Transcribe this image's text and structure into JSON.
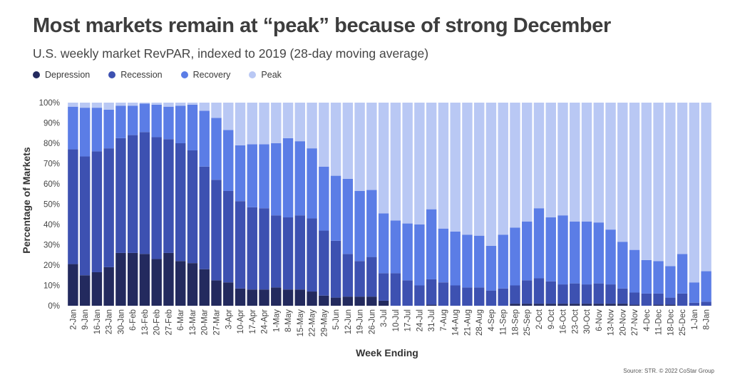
{
  "header": {
    "title": "Most markets remain at “peak” because of strong December",
    "subtitle": "U.S. weekly market RevPAR, indexed to 2019 (28-day moving average)"
  },
  "source": "Source: STR. © 2022 CoStar Group",
  "colors": {
    "Depression": "#232a5e",
    "Recession": "#3d51b1",
    "Recovery": "#5b7de6",
    "Peak": "#b9c8f4"
  },
  "chart_data": {
    "type": "bar",
    "stacked": true,
    "xlabel": "Week Ending",
    "ylabel": "Percentage of Markets",
    "ylim": [
      0,
      100
    ],
    "yticks": [
      "0%",
      "10%",
      "20%",
      "30%",
      "40%",
      "50%",
      "60%",
      "70%",
      "80%",
      "90%",
      "100%"
    ],
    "legend_position": "top-left",
    "grid": false,
    "x_tick_labels": [
      "2-Jan",
      "9-Jan",
      "16-Jan",
      "23-Jan",
      "30-Jan",
      "6-Feb",
      "13-Feb",
      "20-Feb",
      "27-Feb",
      "6-Mar",
      "13-Mar",
      "20-Mar",
      "27-Mar",
      "3-Apr",
      "10-Apr",
      "17-Apr",
      "24-Apr",
      "1-May",
      "8-May",
      "15-May",
      "22-May",
      "29-May",
      "5-Jun",
      "12-Jun",
      "19-Jun",
      "26-Jun",
      "3-Jul",
      "10-Jul",
      "17-Jul",
      "24-Jul",
      "31-Jul",
      "7-Aug",
      "14-Aug",
      "21-Aug",
      "28-Aug",
      "4-Sep",
      "11-Sep",
      "18-Sep",
      "25-Sep",
      "2-Oct",
      "9-Oct",
      "16-Oct",
      "23-Oct",
      "30-Oct",
      "6-Nov",
      "13-Nov",
      "20-Nov",
      "27-Nov",
      "4-Dec",
      "11-Dec",
      "18-Dec",
      "25-Dec",
      "1-Jan",
      "8-Jan"
    ],
    "tick_every": 1,
    "series": [
      {
        "name": "Depression",
        "values": [
          20.5,
          15,
          16.5,
          19,
          26,
          26,
          25.5,
          23,
          26,
          22,
          21,
          18,
          12.5,
          11.5,
          8.5,
          8,
          8,
          9,
          8,
          8,
          7,
          5,
          4,
          4.5,
          4.5,
          4.5,
          2.5,
          0,
          0,
          0,
          0.5,
          0,
          0,
          0,
          0,
          0,
          0,
          1,
          1,
          1,
          1,
          1,
          1,
          1,
          1,
          1,
          1,
          0.5,
          0,
          0.5,
          0.5,
          0,
          0,
          0
        ]
      },
      {
        "name": "Recession",
        "values": [
          56.5,
          58.5,
          59.5,
          58.5,
          56.5,
          58,
          60,
          60,
          56,
          58,
          55.5,
          50.5,
          49.5,
          45,
          43,
          40.5,
          40,
          35.5,
          35.5,
          36.5,
          36,
          32,
          28,
          21,
          17.5,
          19.5,
          13.5,
          16,
          12.5,
          10,
          12.5,
          11.5,
          10,
          9,
          9,
          7.5,
          8.5,
          9,
          11.5,
          12.5,
          11,
          9.5,
          10,
          9.5,
          10,
          9.5,
          7.5,
          6,
          6,
          5.5,
          3.5,
          6,
          1.5,
          2
        ]
      },
      {
        "name": "Recovery",
        "values": [
          21,
          24,
          21.5,
          19,
          16,
          14.5,
          14,
          16,
          16,
          18.5,
          22.5,
          27.5,
          30.5,
          30,
          27.5,
          31,
          31.5,
          35.5,
          39,
          36.5,
          34.5,
          31.5,
          32,
          37,
          34.5,
          33,
          29.5,
          26,
          28,
          30,
          34.5,
          26.5,
          26.5,
          26,
          25.5,
          22,
          26.5,
          28.5,
          29,
          34.5,
          31.5,
          34,
          30.5,
          31,
          30,
          27,
          23,
          21,
          16.5,
          16,
          15.5,
          19.5,
          10,
          15
        ]
      },
      {
        "name": "Peak",
        "values": [
          2,
          2.5,
          2.5,
          3.5,
          1.5,
          1.5,
          0.5,
          1,
          2,
          1.5,
          1,
          4,
          7.5,
          13.5,
          21,
          20.5,
          20.5,
          20,
          17.5,
          19,
          22.5,
          31.5,
          36,
          37.5,
          43.5,
          43,
          54.5,
          58,
          59.5,
          60,
          52.5,
          62,
          63.5,
          65,
          65.5,
          70.5,
          65,
          61.5,
          58.5,
          52,
          56.5,
          55.5,
          58.5,
          58.5,
          59,
          62.5,
          68.5,
          72.5,
          77.5,
          78,
          80.5,
          74.5,
          88.5,
          83
        ]
      }
    ]
  }
}
